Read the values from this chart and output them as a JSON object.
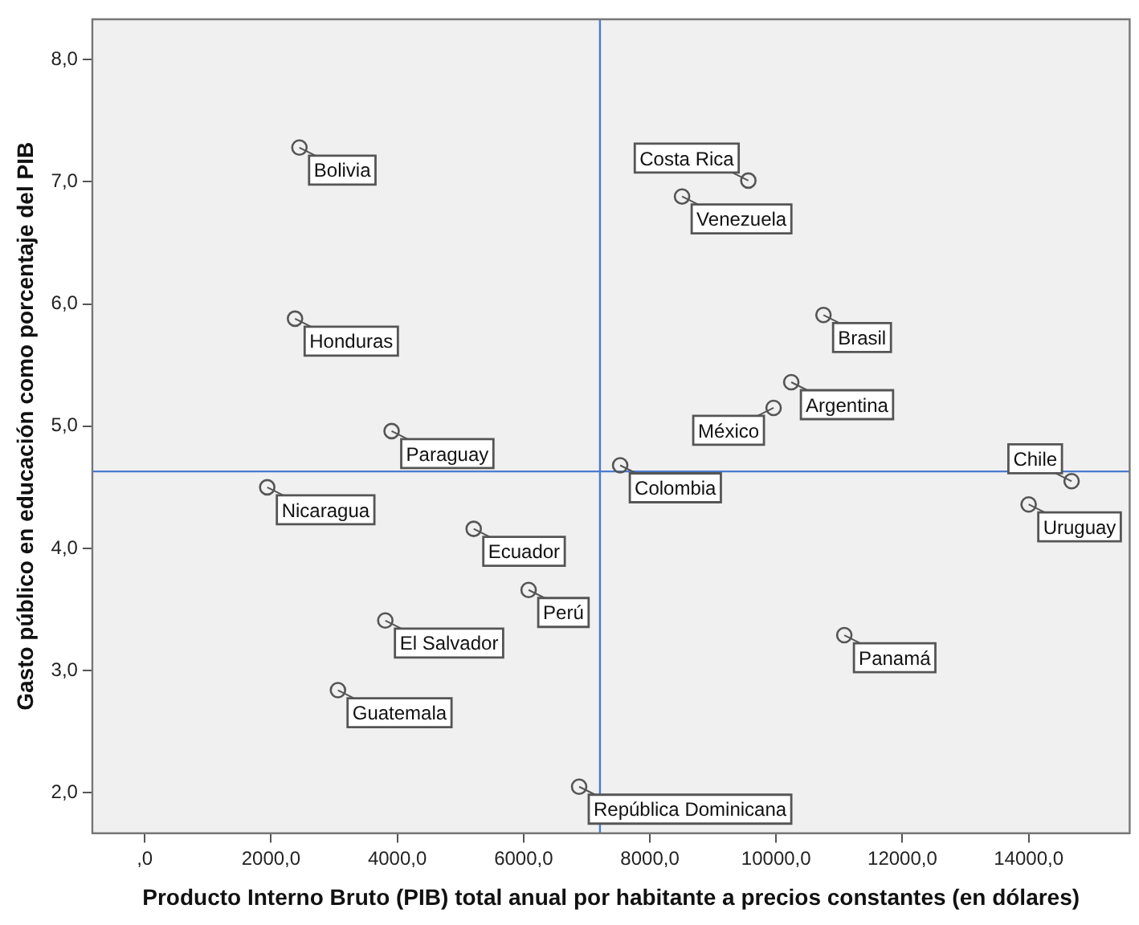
{
  "chart_data": {
    "type": "scatter",
    "xlabel": "Producto Interno Bruto (PIB) total anual por habitante a precios constantes (en dólares)",
    "ylabel": "Gasto público en educación como porcentaje del PIB",
    "x": [
      2450,
      8510,
      9560,
      10750,
      2380,
      10240,
      9960,
      3910,
      7530,
      1940,
      14680,
      14000,
      5210,
      6080,
      3810,
      11080,
      3060,
      6880
    ],
    "values": [
      7.28,
      6.88,
      7.01,
      5.91,
      5.88,
      5.36,
      5.15,
      4.96,
      4.68,
      4.5,
      4.55,
      4.36,
      4.16,
      3.66,
      3.41,
      3.29,
      2.84,
      2.05
    ],
    "value_labels": [
      "Bolivia",
      "Venezuela",
      "Costa Rica",
      "Brasil",
      "Honduras",
      "Argentina",
      "México",
      "Paraguay",
      "Colombia",
      "Nicaragua",
      "Chile",
      "Uruguay",
      "Ecuador",
      "Perú",
      "El Salvador",
      "Panamá",
      "Guatemala",
      "República Dominicana"
    ],
    "color": "#555555",
    "marker": "circle",
    "grid": false,
    "legend": false,
    "xlim": [
      -830,
      15600
    ],
    "xticks": [
      {
        "value": 0,
        "label": ",0"
      },
      {
        "value": 2000,
        "label": "2000,0"
      },
      {
        "value": 4000,
        "label": "4000,0"
      },
      {
        "value": 6000,
        "label": "6000,0"
      },
      {
        "value": 8000,
        "label": "8000,0"
      },
      {
        "value": 10000,
        "label": "10000,0"
      },
      {
        "value": 12000,
        "label": "12000,0"
      },
      {
        "value": 14000,
        "label": "14000,0"
      }
    ],
    "ylim": [
      1.67,
      8.33
    ],
    "yticks": [
      {
        "value": 2,
        "label": "2,0"
      },
      {
        "value": 3,
        "label": "3,0"
      },
      {
        "value": 4,
        "label": "4,0"
      },
      {
        "value": 5,
        "label": "5,0"
      },
      {
        "value": 6,
        "label": "6,0"
      },
      {
        "value": 7,
        "label": "7,0"
      },
      {
        "value": 8,
        "label": "8,0"
      }
    ],
    "ref_lines": [
      {
        "axis": "x",
        "value": 7210,
        "color": "#4a7bd0"
      },
      {
        "axis": "y",
        "value": 4.63,
        "color": "#4a7bd0"
      }
    ]
  }
}
